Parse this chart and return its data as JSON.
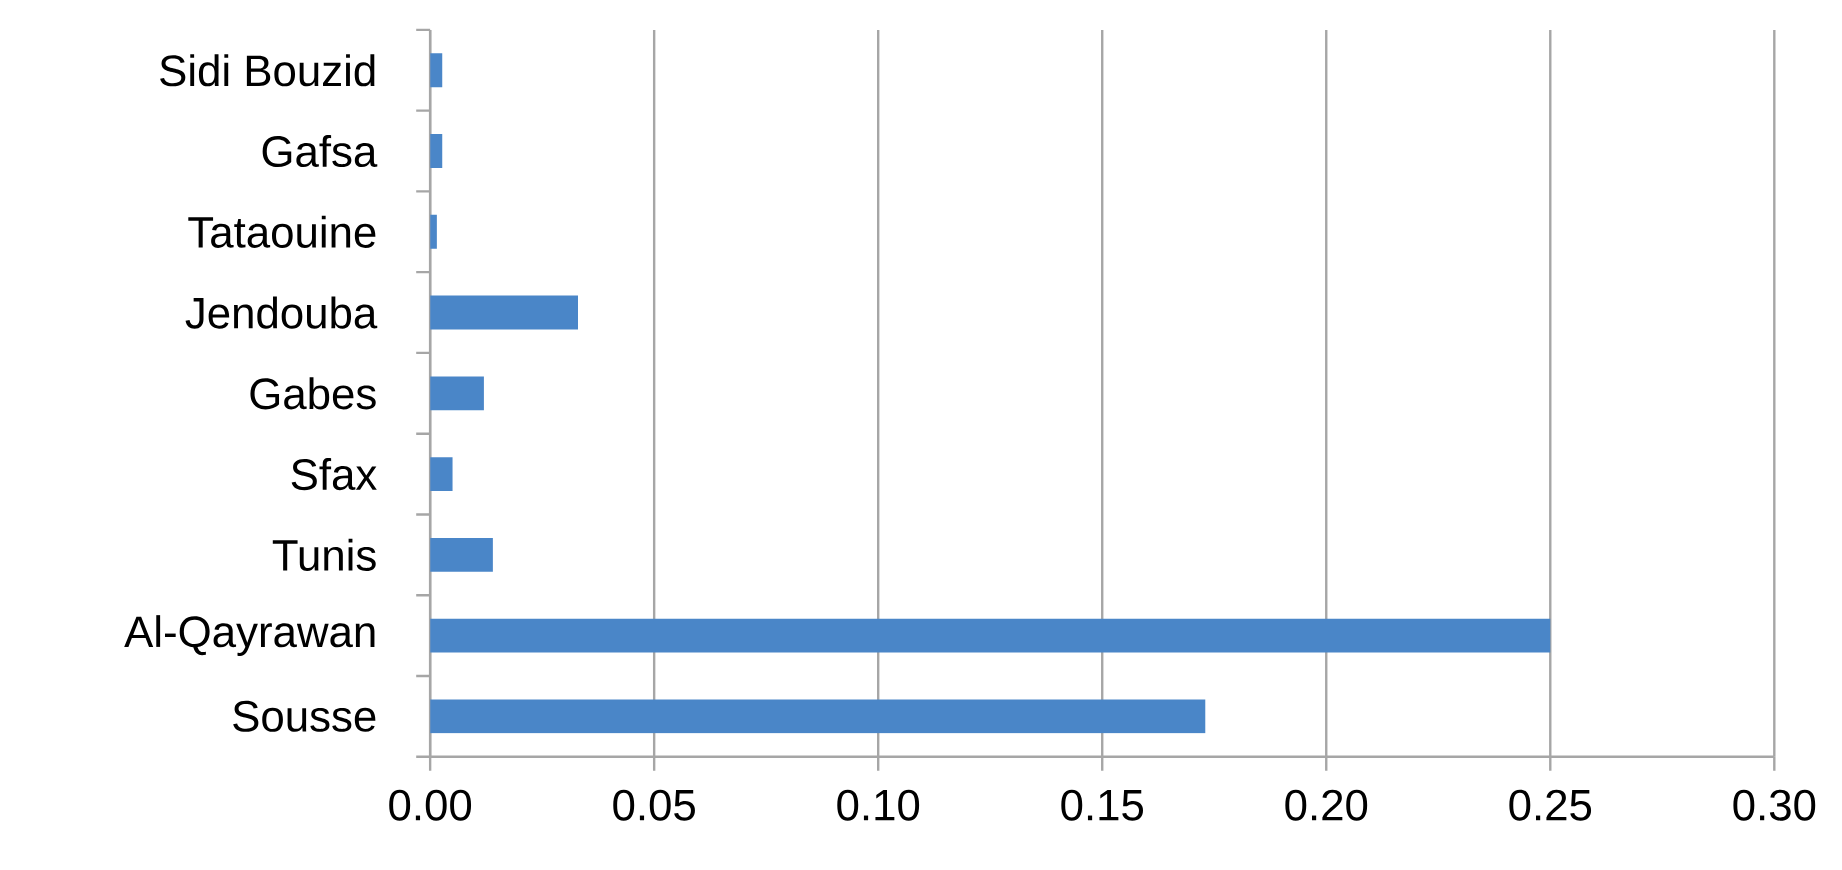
{
  "chart_data": {
    "type": "bar",
    "orientation": "horizontal",
    "categories": [
      "Sidi Bouzid",
      "Gafsa",
      "Tataouine",
      "Jendouba",
      "Gabes",
      "Sfax",
      "Tunis",
      "Al-Qayrawan",
      "Sousse"
    ],
    "values": [
      0.0027,
      0.0027,
      0.0015,
      0.033,
      0.012,
      0.005,
      0.014,
      0.25,
      0.173
    ],
    "color": "#4a86c8",
    "xlim": [
      0,
      0.3
    ],
    "xticks": [
      {
        "value": 0,
        "label": "0.00"
      },
      {
        "value": 0.05,
        "label": "0.05"
      },
      {
        "value": 0.1,
        "label": "0.10"
      },
      {
        "value": 0.15,
        "label": "0.15"
      },
      {
        "value": 0.2,
        "label": "0.20"
      },
      {
        "value": 0.25,
        "label": "0.25"
      },
      {
        "value": 0.3,
        "label": "0.30"
      }
    ],
    "grid": "x"
  }
}
